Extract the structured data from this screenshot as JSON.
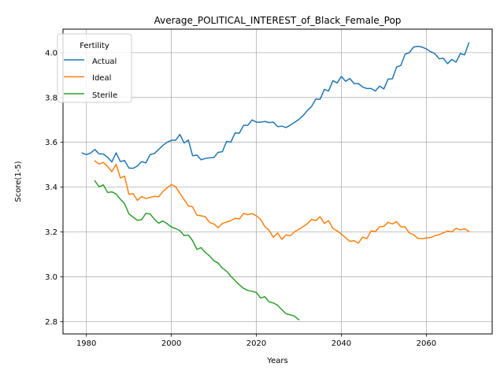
{
  "chart_data": {
    "type": "line",
    "title": "Average_POLITICAL_INTEREST_of_Black_Female_Pop",
    "xlabel": "Years",
    "ylabel": "Score(1-5)",
    "xlim": [
      1974.5,
      2075.5
    ],
    "ylim": [
      2.745,
      4.105
    ],
    "xticks": [
      1980,
      2000,
      2020,
      2040,
      2060
    ],
    "yticks": [
      2.8,
      3.0,
      3.2,
      3.4,
      3.6,
      3.8,
      4.0
    ],
    "xtick_labels": [
      "1980",
      "2000",
      "2020",
      "2040",
      "2060"
    ],
    "ytick_labels": [
      "2.8",
      "3.0",
      "3.2",
      "3.4",
      "3.6",
      "3.8",
      "4.0"
    ],
    "grid": true,
    "legend": {
      "title": "Fertility",
      "position": "top-left"
    },
    "series": [
      {
        "name": "Actual",
        "color": "#1f77b4",
        "x_start": 1979,
        "values": [
          3.552,
          3.545,
          3.552,
          3.568,
          3.548,
          3.548,
          3.533,
          3.512,
          3.553,
          3.514,
          3.519,
          3.485,
          3.484,
          3.494,
          3.514,
          3.508,
          3.545,
          3.55,
          3.568,
          3.586,
          3.6,
          3.609,
          3.609,
          3.635,
          3.597,
          3.61,
          3.54,
          3.543,
          3.522,
          3.528,
          3.531,
          3.532,
          3.555,
          3.558,
          3.604,
          3.601,
          3.642,
          3.641,
          3.676,
          3.676,
          3.7,
          3.69,
          3.69,
          3.693,
          3.688,
          3.69,
          3.67,
          3.672,
          3.666,
          3.677,
          3.689,
          3.702,
          3.719,
          3.742,
          3.76,
          3.793,
          3.792,
          3.836,
          3.829,
          3.875,
          3.865,
          3.894,
          3.872,
          3.885,
          3.862,
          3.862,
          3.847,
          3.84,
          3.84,
          3.829,
          3.851,
          3.838,
          3.882,
          3.883,
          3.936,
          3.943,
          3.993,
          4.0,
          4.025,
          4.028,
          4.025,
          4.017,
          4.004,
          3.996,
          3.973,
          3.975,
          3.951,
          3.97,
          3.958,
          3.996,
          3.99,
          4.043
        ]
      },
      {
        "name": "Ideal",
        "color": "#ff7f0e",
        "x_start": 1982,
        "values": [
          3.517,
          3.503,
          3.51,
          3.492,
          3.469,
          3.502,
          3.441,
          3.449,
          3.368,
          3.371,
          3.341,
          3.358,
          3.349,
          3.354,
          3.359,
          3.357,
          3.38,
          3.397,
          3.411,
          3.402,
          3.372,
          3.345,
          3.316,
          3.312,
          3.275,
          3.272,
          3.268,
          3.242,
          3.236,
          3.219,
          3.238,
          3.244,
          3.251,
          3.261,
          3.258,
          3.283,
          3.277,
          3.282,
          3.272,
          3.256,
          3.224,
          3.207,
          3.176,
          3.195,
          3.167,
          3.187,
          3.183,
          3.201,
          3.212,
          3.224,
          3.237,
          3.256,
          3.251,
          3.268,
          3.238,
          3.25,
          3.216,
          3.205,
          3.191,
          3.174,
          3.158,
          3.161,
          3.15,
          3.177,
          3.17,
          3.205,
          3.201,
          3.223,
          3.225,
          3.243,
          3.236,
          3.246,
          3.223,
          3.223,
          3.195,
          3.188,
          3.171,
          3.17,
          3.173,
          3.175,
          3.183,
          3.188,
          3.196,
          3.204,
          3.2,
          3.216,
          3.209,
          3.214,
          3.203
        ]
      },
      {
        "name": "Sterile",
        "color": "#2ca02c",
        "x_start": 1982,
        "values": [
          3.428,
          3.402,
          3.41,
          3.376,
          3.379,
          3.369,
          3.346,
          3.326,
          3.281,
          3.266,
          3.252,
          3.255,
          3.283,
          3.28,
          3.257,
          3.239,
          3.249,
          3.237,
          3.222,
          3.215,
          3.206,
          3.184,
          3.186,
          3.161,
          3.122,
          3.13,
          3.108,
          3.093,
          3.072,
          3.061,
          3.039,
          3.025,
          3.002,
          2.983,
          2.964,
          2.948,
          2.939,
          2.935,
          2.93,
          2.905,
          2.911,
          2.888,
          2.883,
          2.873,
          2.853,
          2.835,
          2.83,
          2.824,
          2.808
        ]
      }
    ]
  }
}
